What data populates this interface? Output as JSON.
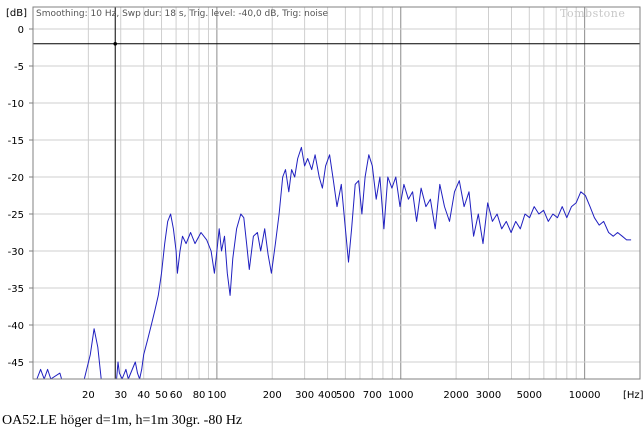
{
  "header": {
    "unit_label": "[dB]",
    "settings_text": "Smoothing: 10 Hz, Swp dur: 18 s, Trig. level: -40,0 dB, Trig: noise",
    "watermark": "Tombstone"
  },
  "caption": "OA52.LE höger d=1m, h=1m 30gr. -80 Hz",
  "chart_data": {
    "type": "line",
    "xscale": "log",
    "xlim": [
      10,
      20000
    ],
    "ylim": [
      -48,
      1
    ],
    "xunit_label": "[Hz]",
    "xticks": [
      {
        "v": 20,
        "t": "20"
      },
      {
        "v": 30,
        "t": "30"
      },
      {
        "v": 40,
        "t": "40"
      },
      {
        "v": 50,
        "t": "50"
      },
      {
        "v": 60,
        "t": "60"
      },
      {
        "v": 80,
        "t": "80"
      },
      {
        "v": 100,
        "t": "100"
      },
      {
        "v": 200,
        "t": "200"
      },
      {
        "v": 300,
        "t": "300"
      },
      {
        "v": 400,
        "t": "400"
      },
      {
        "v": 500,
        "t": "500"
      },
      {
        "v": 700,
        "t": "700"
      },
      {
        "v": 1000,
        "t": "1000"
      },
      {
        "v": 2000,
        "t": "2000"
      },
      {
        "v": 3000,
        "t": "3000"
      },
      {
        "v": 5000,
        "t": "5000"
      },
      {
        "v": 10000,
        "t": "10000"
      }
    ],
    "yticks": [
      {
        "v": 0,
        "t": "0"
      },
      {
        "v": -5,
        "t": "-5"
      },
      {
        "v": -10,
        "t": "-10"
      },
      {
        "v": -15,
        "t": "-15"
      },
      {
        "v": -20,
        "t": "-20"
      },
      {
        "v": -25,
        "t": "-25"
      },
      {
        "v": -30,
        "t": "-30"
      },
      {
        "v": -35,
        "t": "-35"
      },
      {
        "v": -40,
        "t": "-40"
      },
      {
        "v": -45,
        "t": "-45"
      }
    ],
    "cursor": {
      "x": 28,
      "y": -2
    },
    "series": [
      {
        "color": "#2020c0",
        "points": [
          [
            10.5,
            -48
          ],
          [
            11,
            -46
          ],
          [
            11.5,
            -47.5
          ],
          [
            12,
            -46
          ],
          [
            12.5,
            -48
          ],
          [
            14,
            -46.5
          ],
          [
            14.3,
            -48
          ],
          [
            19,
            -48
          ],
          [
            20.5,
            -44
          ],
          [
            21.5,
            -40.5
          ],
          [
            22.5,
            -43
          ],
          [
            23.5,
            -48
          ],
          [
            28.5,
            -48
          ],
          [
            29,
            -45
          ],
          [
            29.5,
            -46.5
          ],
          [
            30.5,
            -48
          ],
          [
            32,
            -46
          ],
          [
            33,
            -48
          ],
          [
            36,
            -45
          ],
          [
            37,
            -46.5
          ],
          [
            38,
            -48
          ],
          [
            39,
            -46
          ],
          [
            40,
            -44
          ],
          [
            42,
            -42
          ],
          [
            44,
            -40
          ],
          [
            46,
            -38
          ],
          [
            48,
            -36
          ],
          [
            50,
            -33
          ],
          [
            52,
            -29
          ],
          [
            54,
            -26
          ],
          [
            56,
            -25
          ],
          [
            58,
            -27
          ],
          [
            60,
            -30
          ],
          [
            61,
            -33
          ],
          [
            63,
            -30
          ],
          [
            65,
            -28
          ],
          [
            68,
            -29
          ],
          [
            72,
            -27.5
          ],
          [
            76,
            -29
          ],
          [
            82,
            -27.5
          ],
          [
            88,
            -28.5
          ],
          [
            93,
            -30
          ],
          [
            97,
            -33
          ],
          [
            100,
            -30
          ],
          [
            103,
            -27
          ],
          [
            106,
            -30
          ],
          [
            110,
            -28
          ],
          [
            114,
            -33
          ],
          [
            118,
            -36
          ],
          [
            122,
            -31
          ],
          [
            128,
            -27
          ],
          [
            135,
            -25
          ],
          [
            140,
            -25.5
          ],
          [
            145,
            -29
          ],
          [
            150,
            -32.5
          ],
          [
            158,
            -28
          ],
          [
            166,
            -27.5
          ],
          [
            173,
            -30
          ],
          [
            182,
            -27
          ],
          [
            190,
            -30.5
          ],
          [
            198,
            -33
          ],
          [
            208,
            -29
          ],
          [
            218,
            -25
          ],
          [
            228,
            -20
          ],
          [
            236,
            -19
          ],
          [
            246,
            -22
          ],
          [
            255,
            -19
          ],
          [
            265,
            -20
          ],
          [
            275,
            -17.5
          ],
          [
            288,
            -16
          ],
          [
            300,
            -18.5
          ],
          [
            312,
            -17.5
          ],
          [
            328,
            -19
          ],
          [
            342,
            -17
          ],
          [
            360,
            -20
          ],
          [
            375,
            -21.5
          ],
          [
            390,
            -18.5
          ],
          [
            410,
            -17
          ],
          [
            430,
            -20.5
          ],
          [
            450,
            -24
          ],
          [
            475,
            -21
          ],
          [
            500,
            -27
          ],
          [
            520,
            -31.5
          ],
          [
            540,
            -27
          ],
          [
            565,
            -21
          ],
          [
            590,
            -20.5
          ],
          [
            615,
            -25
          ],
          [
            640,
            -20
          ],
          [
            670,
            -17
          ],
          [
            700,
            -18.5
          ],
          [
            735,
            -23
          ],
          [
            770,
            -20
          ],
          [
            810,
            -27
          ],
          [
            850,
            -20
          ],
          [
            895,
            -21.5
          ],
          [
            940,
            -20
          ],
          [
            990,
            -24
          ],
          [
            1040,
            -21
          ],
          [
            1100,
            -23
          ],
          [
            1160,
            -22
          ],
          [
            1220,
            -26
          ],
          [
            1290,
            -21.5
          ],
          [
            1370,
            -24
          ],
          [
            1450,
            -23
          ],
          [
            1540,
            -27
          ],
          [
            1630,
            -21
          ],
          [
            1730,
            -24
          ],
          [
            1840,
            -26
          ],
          [
            1960,
            -22
          ],
          [
            2080,
            -20.5
          ],
          [
            2210,
            -24
          ],
          [
            2350,
            -22
          ],
          [
            2490,
            -28
          ],
          [
            2640,
            -25
          ],
          [
            2800,
            -29
          ],
          [
            2970,
            -23.5
          ],
          [
            3150,
            -26
          ],
          [
            3340,
            -25
          ],
          [
            3540,
            -27
          ],
          [
            3750,
            -26
          ],
          [
            3980,
            -27.5
          ],
          [
            4220,
            -26
          ],
          [
            4470,
            -27
          ],
          [
            4740,
            -25
          ],
          [
            5020,
            -25.5
          ],
          [
            5320,
            -24
          ],
          [
            5640,
            -25
          ],
          [
            5980,
            -24.5
          ],
          [
            6340,
            -26
          ],
          [
            6720,
            -25
          ],
          [
            7120,
            -25.5
          ],
          [
            7550,
            -24
          ],
          [
            8000,
            -25.5
          ],
          [
            8480,
            -24
          ],
          [
            8990,
            -23.5
          ],
          [
            9530,
            -22
          ],
          [
            10100,
            -22.5
          ],
          [
            10700,
            -24
          ],
          [
            11300,
            -25.5
          ],
          [
            12000,
            -26.5
          ],
          [
            12700,
            -26
          ],
          [
            13500,
            -27.5
          ],
          [
            14300,
            -28
          ],
          [
            15100,
            -27.5
          ],
          [
            16000,
            -28
          ],
          [
            16900,
            -28.5
          ],
          [
            17900,
            -28.5
          ]
        ]
      }
    ]
  }
}
